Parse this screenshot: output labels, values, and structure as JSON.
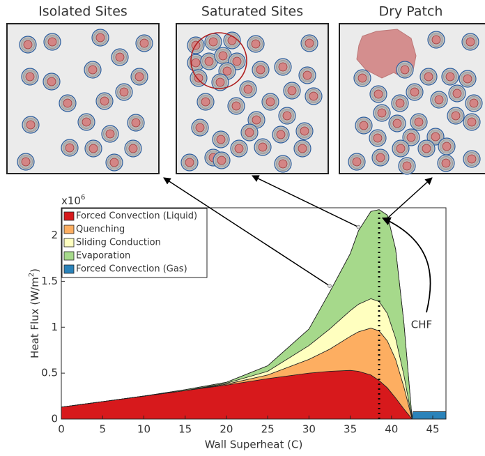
{
  "panels": {
    "titles": [
      "Isolated Sites",
      "Saturated Sites",
      "Dry Patch"
    ]
  },
  "chart_data": {
    "type": "stacked_area",
    "xlabel": "Wall Superheat (C)",
    "ylabel": [
      "Heat Flux (W/m",
      "2",
      ")"
    ],
    "y_multiplier": {
      "base": "x10",
      "exponent": "6"
    },
    "x": [
      0,
      5,
      10,
      15,
      20,
      25,
      30,
      32.5,
      35,
      36,
      37.5,
      38.5,
      39.5,
      40.5,
      41.5,
      42.5,
      42.6,
      46.6
    ],
    "series": [
      {
        "name": "Forced Convection (Liquid)",
        "color": "#d7191c",
        "values": [
          0.13,
          0.19,
          0.25,
          0.31,
          0.37,
          0.44,
          0.5,
          0.52,
          0.53,
          0.52,
          0.48,
          0.42,
          0.34,
          0.23,
          0.11,
          0,
          0,
          0
        ]
      },
      {
        "name": "Quenching",
        "color": "#fdae61",
        "values": [
          0,
          0,
          0,
          0,
          0.01,
          0.04,
          0.15,
          0.24,
          0.37,
          0.43,
          0.51,
          0.54,
          0.51,
          0.42,
          0.24,
          0,
          0,
          0
        ]
      },
      {
        "name": "Sliding Conduction",
        "color": "#ffffbf",
        "values": [
          0,
          0,
          0,
          0,
          0.01,
          0.04,
          0.15,
          0.22,
          0.28,
          0.3,
          0.32,
          0.32,
          0.3,
          0.23,
          0.13,
          0,
          0,
          0
        ]
      },
      {
        "name": "Evaporation",
        "color": "#a6d98b",
        "values": [
          0,
          0,
          0,
          0.01,
          0.01,
          0.06,
          0.18,
          0.4,
          0.62,
          0.8,
          0.95,
          1.0,
          1.07,
          0.97,
          0.57,
          0,
          0,
          0
        ]
      },
      {
        "name": "Forced Convection (Gas)",
        "color": "#2b83ba",
        "values": [
          0,
          0,
          0,
          0,
          0,
          0,
          0,
          0,
          0,
          0,
          0,
          0,
          0,
          0,
          0,
          0,
          0.08,
          0.08
        ]
      }
    ],
    "xlim": [
      0,
      46.6
    ],
    "xticks": [
      0,
      5,
      10,
      15,
      20,
      25,
      30,
      35,
      40,
      45
    ],
    "ylim": [
      0,
      2.3
    ],
    "yticks": [
      0,
      0.5,
      1,
      1.5,
      2
    ],
    "legend": "upper left",
    "markers": {
      "x": [
        32.5,
        36,
        39.3
      ],
      "y": [
        1.45,
        2.09,
        2.17
      ]
    },
    "chf_x": 38.5,
    "chf_top": 2.28,
    "annotation": "CHF"
  }
}
